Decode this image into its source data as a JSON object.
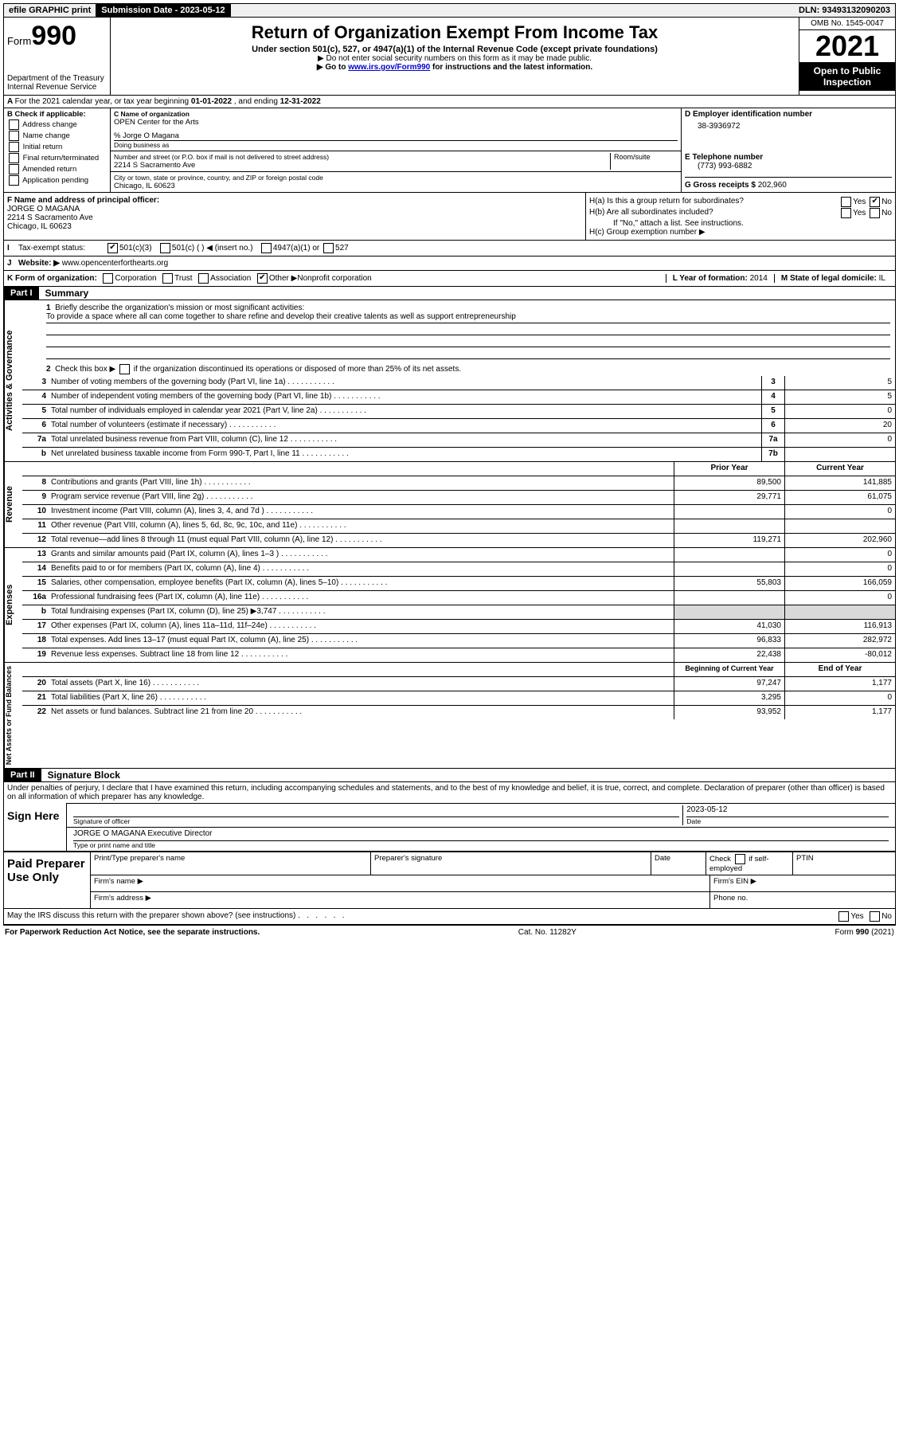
{
  "topbar": {
    "efile": "efile GRAPHIC print",
    "sub_label": "Submission Date - ",
    "sub_date": "2023-05-12",
    "dln_label": "DLN: ",
    "dln": "93493132090203"
  },
  "header": {
    "form_prefix": "Form",
    "form_num": "990",
    "dept": "Department of the Treasury",
    "irs": "Internal Revenue Service",
    "title": "Return of Organization Exempt From Income Tax",
    "sub1": "Under section 501(c), 527, or 4947(a)(1) of the Internal Revenue Code (except private foundations)",
    "sub2": "Do not enter social security numbers on this form as it may be made public.",
    "sub3_pre": "Go to ",
    "sub3_link": "www.irs.gov/Form990",
    "sub3_post": " for instructions and the latest information.",
    "omb": "OMB No. 1545-0047",
    "year": "2021",
    "inspect1": "Open to Public",
    "inspect2": "Inspection"
  },
  "line_a": {
    "text_pre": "For the 2021 calendar year, or tax year beginning ",
    "begin": "01-01-2022",
    "mid": " , and ending ",
    "end": "12-31-2022"
  },
  "sec_b": {
    "label": "B Check if applicable:",
    "opts": [
      "Address change",
      "Name change",
      "Initial return",
      "Final return/terminated",
      "Amended return",
      "Application pending"
    ]
  },
  "sec_c": {
    "name_label": "C Name of organization",
    "name": "OPEN Center for the Arts",
    "care_label": "% Jorge O Magana",
    "dba_label": "Doing business as",
    "addr_label": "Number and street (or P.O. box if mail is not delivered to street address)",
    "room": "Room/suite",
    "addr": "2214 S Sacramento Ave",
    "city_label": "City or town, state or province, country, and ZIP or foreign postal code",
    "city": "Chicago, IL  60623"
  },
  "sec_d": {
    "label": "D Employer identification number",
    "val": "38-3936972"
  },
  "sec_e": {
    "label": "E Telephone number",
    "val": "(773) 993-6882"
  },
  "sec_g": {
    "label": "G Gross receipts $ ",
    "val": "202,960"
  },
  "sec_f": {
    "label": "F Name and address of principal officer:",
    "name": "JORGE O MAGANA",
    "addr": "2214 S Sacramento Ave",
    "city": "Chicago, IL  60623"
  },
  "sec_h": {
    "a": "H(a)  Is this a group return for subordinates?",
    "a_yes": "Yes",
    "a_no": "No",
    "b": "H(b)  Are all subordinates included?",
    "b_note": "If \"No,\" attach a list. See instructions.",
    "c": "H(c)  Group exemption number ▶"
  },
  "sec_i": {
    "label": "I",
    "text": "Tax-exempt status:",
    "opt1": "501(c)(3)",
    "opt2": "501(c) (  ) ◀ (insert no.)",
    "opt3": "4947(a)(1) or",
    "opt4": "527"
  },
  "sec_j": {
    "label": "J",
    "text": "Website: ▶",
    "val": "www.opencenterforthearts.org"
  },
  "sec_k": {
    "label": "K Form of organization:",
    "opts": [
      "Corporation",
      "Trust",
      "Association",
      "Other ▶"
    ],
    "other": "Nonprofit corporation",
    "l": "L Year of formation: ",
    "l_val": "2014",
    "m": "M State of legal domicile: ",
    "m_val": "IL"
  },
  "part1": {
    "label": "Part I",
    "title": "Summary"
  },
  "summary": {
    "q1_label": "1",
    "q1": "Briefly describe the organization's mission or most significant activities:",
    "q1_text": "To provide a space where all can come together to share refine and develop their creative talents as well as support entrepreneurship",
    "q2": "Check this box ▶",
    "q2b": " if the organization discontinued its operations or disposed of more than 25% of its net assets.",
    "lines": [
      {
        "n": "3",
        "t": "Number of voting members of the governing body (Part VI, line 1a)",
        "box": "3",
        "v": "5"
      },
      {
        "n": "4",
        "t": "Number of independent voting members of the governing body (Part VI, line 1b)",
        "box": "4",
        "v": "5"
      },
      {
        "n": "5",
        "t": "Total number of individuals employed in calendar year 2021 (Part V, line 2a)",
        "box": "5",
        "v": "0"
      },
      {
        "n": "6",
        "t": "Total number of volunteers (estimate if necessary)",
        "box": "6",
        "v": "20"
      },
      {
        "n": "7a",
        "t": "Total unrelated business revenue from Part VIII, column (C), line 12",
        "box": "7a",
        "v": "0"
      },
      {
        "n": "b",
        "t": "Net unrelated business taxable income from Form 990-T, Part I, line 11",
        "box": "7b",
        "v": ""
      }
    ],
    "col_prior": "Prior Year",
    "col_current": "Current Year"
  },
  "revenue": [
    {
      "n": "8",
      "t": "Contributions and grants (Part VIII, line 1h)",
      "p": "89,500",
      "c": "141,885"
    },
    {
      "n": "9",
      "t": "Program service revenue (Part VIII, line 2g)",
      "p": "29,771",
      "c": "61,075"
    },
    {
      "n": "10",
      "t": "Investment income (Part VIII, column (A), lines 3, 4, and 7d )",
      "p": "",
      "c": "0"
    },
    {
      "n": "11",
      "t": "Other revenue (Part VIII, column (A), lines 5, 6d, 8c, 9c, 10c, and 11e)",
      "p": "",
      "c": ""
    },
    {
      "n": "12",
      "t": "Total revenue—add lines 8 through 11 (must equal Part VIII, column (A), line 12)",
      "p": "119,271",
      "c": "202,960"
    }
  ],
  "expenses": [
    {
      "n": "13",
      "t": "Grants and similar amounts paid (Part IX, column (A), lines 1–3 )",
      "p": "",
      "c": "0"
    },
    {
      "n": "14",
      "t": "Benefits paid to or for members (Part IX, column (A), line 4)",
      "p": "",
      "c": "0"
    },
    {
      "n": "15",
      "t": "Salaries, other compensation, employee benefits (Part IX, column (A), lines 5–10)",
      "p": "55,803",
      "c": "166,059"
    },
    {
      "n": "16a",
      "t": "Professional fundraising fees (Part IX, column (A), line 11e)",
      "p": "",
      "c": "0"
    },
    {
      "n": "b",
      "t": "Total fundraising expenses (Part IX, column (D), line 25) ▶3,747",
      "p": "GREY",
      "c": "GREY"
    },
    {
      "n": "17",
      "t": "Other expenses (Part IX, column (A), lines 11a–11d, 11f–24e)",
      "p": "41,030",
      "c": "116,913"
    },
    {
      "n": "18",
      "t": "Total expenses. Add lines 13–17 (must equal Part IX, column (A), line 25)",
      "p": "96,833",
      "c": "282,972"
    },
    {
      "n": "19",
      "t": "Revenue less expenses. Subtract line 18 from line 12",
      "p": "22,438",
      "c": "-80,012"
    }
  ],
  "netassets_hdr": {
    "p": "Beginning of Current Year",
    "c": "End of Year"
  },
  "netassets": [
    {
      "n": "20",
      "t": "Total assets (Part X, line 16)",
      "p": "97,247",
      "c": "1,177"
    },
    {
      "n": "21",
      "t": "Total liabilities (Part X, line 26)",
      "p": "3,295",
      "c": "0"
    },
    {
      "n": "22",
      "t": "Net assets or fund balances. Subtract line 21 from line 20",
      "p": "93,952",
      "c": "1,177"
    }
  ],
  "side": {
    "gov": "Activities & Governance",
    "rev": "Revenue",
    "exp": "Expenses",
    "net": "Net Assets or Fund Balances"
  },
  "part2": {
    "label": "Part II",
    "title": "Signature Block"
  },
  "perjury": "Under penalties of perjury, I declare that I have examined this return, including accompanying schedules and statements, and to the best of my knowledge and belief, it is true, correct, and complete. Declaration of preparer (other than officer) is based on all information of which preparer has any knowledge.",
  "sign": {
    "here": "Sign Here",
    "sig_officer": "Signature of officer",
    "date_label": "Date",
    "date": "2023-05-12",
    "name": "JORGE O MAGANA  Executive Director",
    "name_label": "Type or print name and title"
  },
  "paid": {
    "title": "Paid Preparer Use Only",
    "c1": "Print/Type preparer's name",
    "c2": "Preparer's signature",
    "c3": "Date",
    "c4_pre": "Check",
    "c4_post": "if self-employed",
    "c5": "PTIN",
    "firm_name": "Firm's name  ▶",
    "firm_ein": "Firm's EIN ▶",
    "firm_addr": "Firm's address ▶",
    "phone": "Phone no."
  },
  "discuss": {
    "q": "May the IRS discuss this return with the preparer shown above? (see instructions)",
    "yes": "Yes",
    "no": "No"
  },
  "footer": {
    "left": "For Paperwork Reduction Act Notice, see the separate instructions.",
    "mid": "Cat. No. 11282Y",
    "right": "Form 990 (2021)"
  }
}
